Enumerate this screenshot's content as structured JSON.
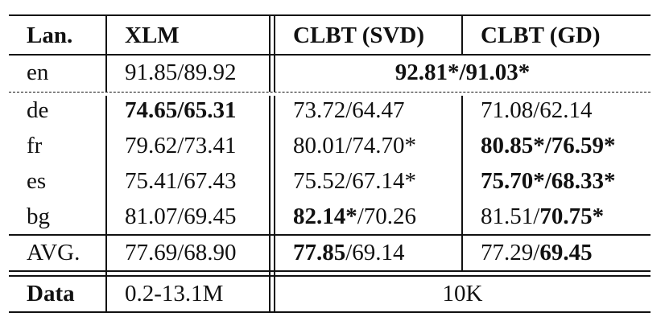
{
  "table": {
    "header": {
      "lang": "Lan.",
      "xlm": "XLM",
      "svd": "CLBT (SVD)",
      "gd": "CLBT (GD)"
    },
    "rows": {
      "en": {
        "lang": "en",
        "xlm": "91.85/89.92",
        "clbt_merged": "92.81*/91.03*"
      },
      "de": {
        "lang": "de",
        "xlm": "74.65/65.31",
        "svd": "73.72/64.47",
        "gd": "71.08/62.14"
      },
      "fr": {
        "lang": "fr",
        "xlm": "79.62/73.41",
        "svd": "80.01/74.70*",
        "gd": "80.85*/76.59*"
      },
      "es": {
        "lang": "es",
        "xlm": "75.41/67.43",
        "svd": "75.52/67.14*",
        "gd": "75.70*/68.33*"
      },
      "bg": {
        "lang": "bg",
        "xlm": "81.07/69.45",
        "svd_bold": "82.14*",
        "svd_rest": "/70.26",
        "gd_plain": "81.51/",
        "gd_bold": "70.75*"
      },
      "avg": {
        "lang": "AVG.",
        "xlm": "77.69/68.90",
        "svd_bold": "77.85",
        "svd_rest": "/69.14",
        "gd_plain": "77.29/",
        "gd_bold": "69.45"
      },
      "data": {
        "lang": "Data",
        "xlm": "0.2-13.1M",
        "clbt_merged": "10K"
      }
    }
  }
}
